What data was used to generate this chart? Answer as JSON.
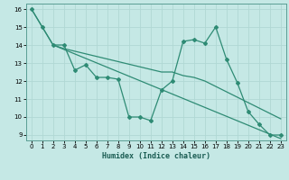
{
  "line1_x": [
    0,
    1,
    2,
    3,
    4,
    5,
    6,
    7,
    8,
    9,
    10,
    11,
    12,
    13,
    14,
    15,
    16,
    17,
    18,
    19,
    20,
    21,
    22,
    23
  ],
  "line1_y": [
    16,
    15,
    14,
    14,
    12.6,
    12.9,
    12.2,
    12.2,
    12.1,
    10.0,
    10.0,
    9.8,
    11.5,
    12.0,
    14.2,
    14.3,
    14.1,
    15.0,
    13.2,
    11.9,
    10.3,
    9.6,
    9.0,
    9.0
  ],
  "line2_x": [
    0,
    2,
    23
  ],
  "line2_y": [
    16,
    14,
    8.8
  ],
  "line3_x": [
    2,
    3,
    12,
    13,
    14,
    15,
    16,
    17,
    18,
    19,
    20,
    21,
    22,
    23
  ],
  "line3_y": [
    14,
    13.8,
    12.5,
    12.5,
    12.3,
    12.2,
    12.0,
    11.7,
    11.4,
    11.1,
    10.8,
    10.5,
    10.2,
    9.9
  ],
  "color": "#2e8b74",
  "bg_color": "#c5e8e5",
  "grid_color": "#b0d8d4",
  "xlabel": "Humidex (Indice chaleur)",
  "xlim": [
    -0.5,
    23.5
  ],
  "ylim": [
    8.7,
    16.3
  ],
  "xticks": [
    0,
    1,
    2,
    3,
    4,
    5,
    6,
    7,
    8,
    9,
    10,
    11,
    12,
    13,
    14,
    15,
    16,
    17,
    18,
    19,
    20,
    21,
    22,
    23
  ],
  "yticks": [
    9,
    10,
    11,
    12,
    13,
    14,
    15,
    16
  ]
}
